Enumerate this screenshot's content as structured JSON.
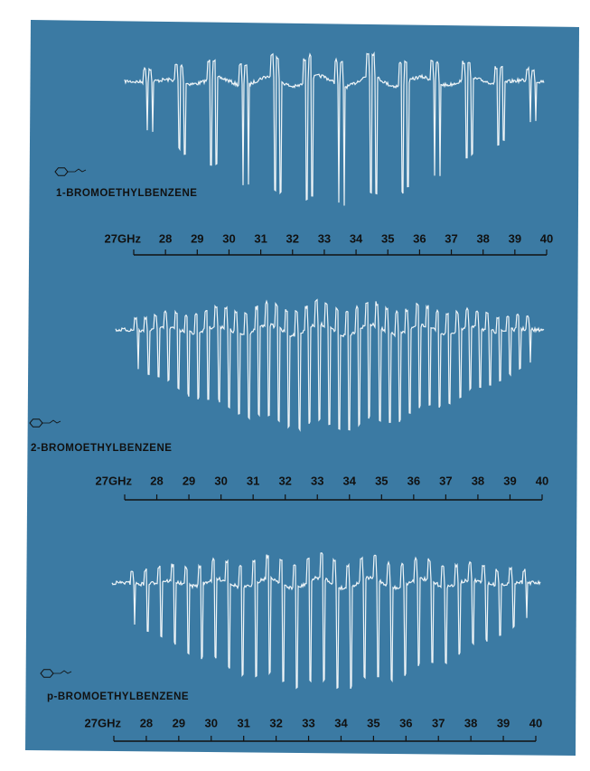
{
  "xlim": [
    27,
    40
  ],
  "panels": [
    {
      "name": "1-BROMOETHYLBENZENE",
      "ticks": [
        {
          "value": 27,
          "label": "27GHz"
        },
        28,
        29,
        30,
        31,
        32,
        33,
        34,
        35,
        36,
        37,
        38,
        39,
        40
      ]
    },
    {
      "name": "2-BROMOETHYLBENZENE",
      "ticks": [
        {
          "value": 27,
          "label": "27GHz"
        },
        28,
        29,
        30,
        31,
        32,
        33,
        34,
        35,
        36,
        37,
        38,
        39,
        40
      ]
    },
    {
      "name": "p-BROMOETHYLBENZENE",
      "ticks": [
        {
          "value": 27,
          "label": "27GHz"
        },
        28,
        29,
        30,
        31,
        32,
        33,
        34,
        35,
        36,
        37,
        38,
        39,
        40
      ]
    }
  ]
}
